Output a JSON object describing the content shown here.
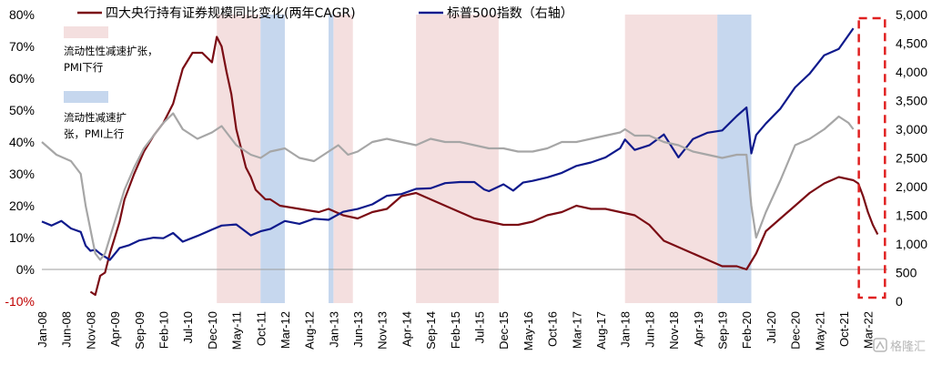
{
  "chart_data": {
    "type": "line",
    "title": "",
    "xlabel": "",
    "ylabel": "",
    "y_left_ticks": [
      "80%",
      "70%",
      "60%",
      "50%",
      "40%",
      "30%",
      "20%",
      "10%",
      "0%",
      "-10%"
    ],
    "y_left_range": [
      -10,
      80
    ],
    "y_right_ticks": [
      "5,000",
      "4,500",
      "4,000",
      "3,500",
      "3,000",
      "2,500",
      "2,000",
      "1,500",
      "1,000",
      "500",
      "0"
    ],
    "y_right_range": [
      0,
      5000
    ],
    "x_ticks": [
      "Jan-08",
      "Jun-08",
      "Nov-08",
      "Apr-09",
      "Sep-09",
      "Feb-10",
      "Jul-10",
      "Dec-10",
      "May-11",
      "Oct-11",
      "Mar-12",
      "Aug-12",
      "Jan-13",
      "Jun-13",
      "Nov-13",
      "Apr-14",
      "Sep-14",
      "Feb-15",
      "Jul-15",
      "Dec-15",
      "May-16",
      "Oct-16",
      "Mar-17",
      "Aug-17",
      "Jan-18",
      "Jun-18",
      "Nov-18",
      "Apr-19",
      "Sep-19",
      "Feb-20",
      "Jul-20",
      "Dec-20",
      "May-21",
      "Oct-21",
      "Mar-22"
    ],
    "legend": {
      "placement": "top"
    },
    "grid": false,
    "series": [
      {
        "name": "四大央行持有证券规模同比变化(两年CAGR)",
        "axis": "left",
        "color": "#7b0c14",
        "points": [
          [
            "2008-11",
            -7
          ],
          [
            "2008-12",
            -8
          ],
          [
            "2009-01",
            -2
          ],
          [
            "2009-02",
            -1
          ],
          [
            "2009-03",
            5
          ],
          [
            "2009-04",
            10
          ],
          [
            "2009-05",
            15
          ],
          [
            "2009-06",
            22
          ],
          [
            "2009-08",
            30
          ],
          [
            "2009-10",
            37
          ],
          [
            "2009-12",
            42
          ],
          [
            "2010-02",
            46
          ],
          [
            "2010-04",
            52
          ],
          [
            "2010-06",
            63
          ],
          [
            "2010-08",
            68
          ],
          [
            "2010-10",
            68
          ],
          [
            "2010-12",
            65
          ],
          [
            "2011-01",
            73
          ],
          [
            "2011-02",
            70
          ],
          [
            "2011-03",
            62
          ],
          [
            "2011-04",
            55
          ],
          [
            "2011-05",
            44
          ],
          [
            "2011-06",
            38
          ],
          [
            "2011-07",
            32
          ],
          [
            "2011-08",
            29
          ],
          [
            "2011-09",
            25
          ],
          [
            "2011-11",
            22
          ],
          [
            "2011-12",
            22
          ],
          [
            "2012-02",
            20
          ],
          [
            "2012-06",
            19
          ],
          [
            "2012-10",
            18
          ],
          [
            "2012-12",
            19
          ],
          [
            "2013-03",
            17
          ],
          [
            "2013-06",
            16
          ],
          [
            "2013-09",
            18
          ],
          [
            "2013-12",
            19
          ],
          [
            "2014-03",
            23
          ],
          [
            "2014-06",
            24
          ],
          [
            "2014-09",
            22
          ],
          [
            "2014-12",
            20
          ],
          [
            "2015-03",
            18
          ],
          [
            "2015-06",
            16
          ],
          [
            "2015-09",
            15
          ],
          [
            "2015-12",
            14
          ],
          [
            "2016-03",
            14
          ],
          [
            "2016-06",
            15
          ],
          [
            "2016-09",
            17
          ],
          [
            "2016-12",
            18
          ],
          [
            "2017-03",
            20
          ],
          [
            "2017-06",
            19
          ],
          [
            "2017-09",
            19
          ],
          [
            "2017-12",
            18
          ],
          [
            "2018-03",
            17
          ],
          [
            "2018-06",
            14
          ],
          [
            "2018-09",
            9
          ],
          [
            "2018-12",
            7
          ],
          [
            "2019-03",
            5
          ],
          [
            "2019-06",
            3
          ],
          [
            "2019-09",
            1
          ],
          [
            "2019-12",
            1
          ],
          [
            "2020-02",
            0
          ],
          [
            "2020-04",
            5
          ],
          [
            "2020-06",
            12
          ],
          [
            "2020-09",
            16
          ],
          [
            "2020-12",
            20
          ],
          [
            "2021-03",
            24
          ],
          [
            "2021-06",
            27
          ],
          [
            "2021-09",
            29
          ],
          [
            "2021-12",
            28
          ],
          [
            "2022-01",
            27
          ],
          [
            "2022-02",
            23
          ],
          [
            "2022-03",
            18
          ],
          [
            "2022-04",
            14
          ],
          [
            "2022-05",
            11
          ]
        ]
      },
      {
        "name": "标普500指数（右轴）",
        "axis": "right",
        "color": "#0f1a8c",
        "points": [
          [
            "2008-01",
            1390
          ],
          [
            "2008-03",
            1320
          ],
          [
            "2008-05",
            1400
          ],
          [
            "2008-07",
            1270
          ],
          [
            "2008-09",
            1210
          ],
          [
            "2008-10",
            970
          ],
          [
            "2008-11",
            880
          ],
          [
            "2008-12",
            900
          ],
          [
            "2009-01",
            830
          ],
          [
            "2009-03",
            720
          ],
          [
            "2009-05",
            930
          ],
          [
            "2009-07",
            980
          ],
          [
            "2009-09",
            1060
          ],
          [
            "2009-12",
            1110
          ],
          [
            "2010-02",
            1100
          ],
          [
            "2010-04",
            1190
          ],
          [
            "2010-06",
            1040
          ],
          [
            "2010-09",
            1140
          ],
          [
            "2010-12",
            1250
          ],
          [
            "2011-02",
            1320
          ],
          [
            "2011-05",
            1340
          ],
          [
            "2011-08",
            1150
          ],
          [
            "2011-10",
            1220
          ],
          [
            "2011-12",
            1260
          ],
          [
            "2012-03",
            1400
          ],
          [
            "2012-06",
            1350
          ],
          [
            "2012-09",
            1440
          ],
          [
            "2012-12",
            1420
          ],
          [
            "2013-03",
            1560
          ],
          [
            "2013-06",
            1610
          ],
          [
            "2013-09",
            1690
          ],
          [
            "2013-12",
            1840
          ],
          [
            "2014-03",
            1870
          ],
          [
            "2014-06",
            1960
          ],
          [
            "2014-09",
            1970
          ],
          [
            "2014-12",
            2060
          ],
          [
            "2015-03",
            2080
          ],
          [
            "2015-06",
            2080
          ],
          [
            "2015-08",
            1950
          ],
          [
            "2015-09",
            1920
          ],
          [
            "2015-12",
            2040
          ],
          [
            "2016-02",
            1930
          ],
          [
            "2016-04",
            2070
          ],
          [
            "2016-06",
            2100
          ],
          [
            "2016-09",
            2160
          ],
          [
            "2016-12",
            2240
          ],
          [
            "2017-03",
            2360
          ],
          [
            "2017-06",
            2420
          ],
          [
            "2017-09",
            2510
          ],
          [
            "2017-12",
            2670
          ],
          [
            "2018-01",
            2820
          ],
          [
            "2018-03",
            2640
          ],
          [
            "2018-06",
            2720
          ],
          [
            "2018-09",
            2910
          ],
          [
            "2018-12",
            2510
          ],
          [
            "2019-03",
            2830
          ],
          [
            "2019-06",
            2940
          ],
          [
            "2019-09",
            2980
          ],
          [
            "2019-12",
            3230
          ],
          [
            "2020-02",
            3380
          ],
          [
            "2020-03",
            2580
          ],
          [
            "2020-04",
            2900
          ],
          [
            "2020-06",
            3100
          ],
          [
            "2020-09",
            3360
          ],
          [
            "2020-12",
            3730
          ],
          [
            "2021-03",
            3970
          ],
          [
            "2021-06",
            4290
          ],
          [
            "2021-09",
            4400
          ],
          [
            "2021-12",
            4760
          ]
        ]
      },
      {
        "name": "",
        "axis": "left",
        "color": "#a6a6a6",
        "points": [
          [
            "2008-01",
            40
          ],
          [
            "2008-04",
            36
          ],
          [
            "2008-07",
            34
          ],
          [
            "2008-09",
            30
          ],
          [
            "2008-10",
            20
          ],
          [
            "2008-12",
            5
          ],
          [
            "2009-01",
            3
          ],
          [
            "2009-02",
            5
          ],
          [
            "2009-04",
            15
          ],
          [
            "2009-06",
            25
          ],
          [
            "2009-08",
            32
          ],
          [
            "2009-10",
            38
          ],
          [
            "2009-12",
            42
          ],
          [
            "2010-02",
            46
          ],
          [
            "2010-04",
            49
          ],
          [
            "2010-06",
            44
          ],
          [
            "2010-09",
            41
          ],
          [
            "2010-12",
            43
          ],
          [
            "2011-02",
            45
          ],
          [
            "2011-05",
            39
          ],
          [
            "2011-08",
            36
          ],
          [
            "2011-10",
            35
          ],
          [
            "2011-12",
            37
          ],
          [
            "2012-03",
            38
          ],
          [
            "2012-06",
            35
          ],
          [
            "2012-09",
            34
          ],
          [
            "2012-12",
            37
          ],
          [
            "2013-02",
            39
          ],
          [
            "2013-04",
            36
          ],
          [
            "2013-06",
            37
          ],
          [
            "2013-09",
            40
          ],
          [
            "2013-12",
            41
          ],
          [
            "2014-03",
            40
          ],
          [
            "2014-06",
            39
          ],
          [
            "2014-09",
            41
          ],
          [
            "2014-12",
            40
          ],
          [
            "2015-03",
            40
          ],
          [
            "2015-06",
            39
          ],
          [
            "2015-09",
            38
          ],
          [
            "2015-12",
            38
          ],
          [
            "2016-03",
            37
          ],
          [
            "2016-06",
            37
          ],
          [
            "2016-09",
            38
          ],
          [
            "2016-12",
            40
          ],
          [
            "2017-03",
            40
          ],
          [
            "2017-06",
            41
          ],
          [
            "2017-09",
            42
          ],
          [
            "2017-12",
            43
          ],
          [
            "2018-01",
            44
          ],
          [
            "2018-03",
            42
          ],
          [
            "2018-06",
            42
          ],
          [
            "2018-09",
            40
          ],
          [
            "2018-12",
            39
          ],
          [
            "2019-03",
            37
          ],
          [
            "2019-06",
            36
          ],
          [
            "2019-09",
            35
          ],
          [
            "2019-12",
            36
          ],
          [
            "2020-02",
            36
          ],
          [
            "2020-03",
            20
          ],
          [
            "2020-04",
            10
          ],
          [
            "2020-06",
            18
          ],
          [
            "2020-09",
            28
          ],
          [
            "2020-12",
            39
          ],
          [
            "2021-03",
            41
          ],
          [
            "2021-06",
            44
          ],
          [
            "2021-09",
            48
          ],
          [
            "2021-11",
            46
          ],
          [
            "2021-12",
            44
          ]
        ]
      }
    ],
    "shaded_periods": [
      {
        "legend": "流动性减速扩张，PMI下行",
        "color": "#f4dfdf",
        "ranges": [
          [
            "2011-01",
            "2011-10"
          ],
          [
            "2013-01",
            "2013-05"
          ],
          [
            "2014-06",
            "2015-11"
          ],
          [
            "2018-01",
            "2019-08"
          ]
        ]
      },
      {
        "legend": "流动性减速扩张，PMI上行",
        "color": "#c6d7ee",
        "ranges": [
          [
            "2011-10",
            "2012-03"
          ],
          [
            "2012-12",
            "2013-01"
          ],
          [
            "2019-08",
            "2020-03"
          ]
        ]
      }
    ],
    "highlight_box": {
      "from": "2021-12",
      "to": "2022-05",
      "color": "#e02020",
      "style": "dashed"
    }
  },
  "legend": {
    "line1_label": "四大央行持有证券规模同比变化(两年CAGR)",
    "line2_label": "标普500指数（右轴）",
    "shade1_label_l1": "流动性性减速扩张，",
    "shade1_label_l2": "PMI下行",
    "shade2_label_l1": "流动性减速扩",
    "shade2_label_l2": "张，PMI上行"
  },
  "watermark": {
    "text": "格隆汇",
    "icon": "logo-icon"
  }
}
